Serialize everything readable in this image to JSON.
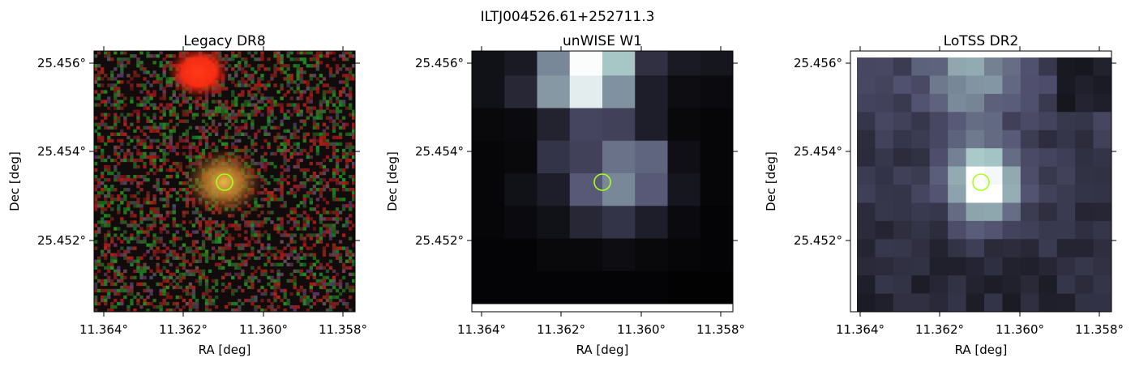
{
  "figure": {
    "suptitle": "ILTJ004526.61+252711.3"
  },
  "panels": [
    {
      "title": "Legacy DR8",
      "xlabel": "RA [deg]",
      "ylabel": "Dec [deg]",
      "xticks": [
        "11.364°",
        "11.362°",
        "11.360°",
        "11.358°"
      ],
      "yticks": [
        "25.456°",
        "25.454°",
        "25.452°"
      ],
      "colormap": "rgb-noise",
      "marker_color": "#a8ff1a"
    },
    {
      "title": "unWISE W1",
      "xlabel": "RA [deg]",
      "ylabel": "Dec [deg]",
      "xticks": [
        "11.364°",
        "11.362°",
        "11.360°",
        "11.358°"
      ],
      "yticks": [
        "25.456°",
        "25.454°",
        "25.452°"
      ],
      "colormap": "bone",
      "marker_color": "#a8ff1a"
    },
    {
      "title": "LoTSS DR2",
      "xlabel": "RA [deg]",
      "ylabel": "Dec [deg]",
      "xticks": [
        "11.364°",
        "11.362°",
        "11.360°",
        "11.358°"
      ],
      "yticks": [
        "25.456°",
        "25.454°",
        "25.452°"
      ],
      "colormap": "bone",
      "marker_color": "#a8ff1a"
    }
  ]
}
